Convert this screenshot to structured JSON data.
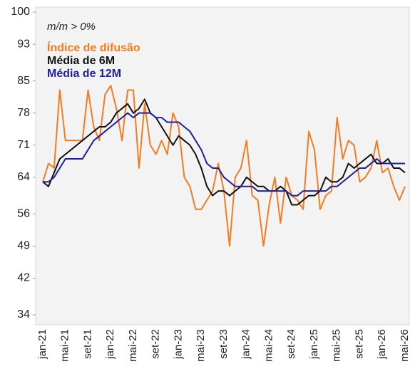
{
  "chart_data": {
    "type": "line",
    "annotation": "m/m > 0%",
    "categories": [
      "jan-21",
      null,
      null,
      null,
      "mai-21",
      null,
      null,
      null,
      "set-21",
      null,
      null,
      null,
      "jan-22",
      null,
      null,
      null,
      "mai-22",
      null,
      null,
      null,
      "set-22",
      null,
      null,
      null,
      "jan-23",
      null,
      null,
      null,
      "mai-23",
      null,
      null,
      null,
      "set-23",
      null,
      null,
      null,
      "jan-24",
      null,
      null,
      null,
      "mai-24",
      null,
      null,
      null,
      "set-24",
      null,
      null,
      null,
      "jan-25",
      null,
      null,
      null,
      "mai-25",
      null,
      null,
      null,
      "set-25",
      null,
      null,
      null,
      "jan-26",
      null,
      null,
      null,
      "mai-26"
    ],
    "series": [
      {
        "name": "Índice de difusão",
        "color": "#f47b20",
        "values": [
          63,
          67,
          66,
          83,
          72,
          72,
          72,
          72,
          83,
          75,
          72,
          82,
          84,
          79,
          72,
          83,
          83,
          66,
          80,
          71,
          69,
          72,
          69,
          78,
          75,
          64,
          62,
          57,
          57,
          59,
          61,
          67,
          61,
          49,
          64,
          66,
          72,
          60,
          59,
          49,
          58,
          64,
          54,
          64,
          60,
          59,
          57,
          74,
          70,
          57,
          60,
          61,
          77,
          68,
          72,
          71,
          63,
          64,
          66,
          72,
          65,
          66,
          62,
          59,
          62
        ]
      },
      {
        "name": "Média de 6M",
        "color": "#111111",
        "values": [
          63,
          62,
          65,
          68,
          69,
          70,
          71,
          72,
          73,
          74,
          75,
          75,
          76,
          78,
          79,
          80,
          78,
          79,
          81,
          78,
          77,
          75,
          73,
          71,
          73,
          72,
          71,
          69,
          66,
          62,
          60,
          61,
          61,
          60,
          61,
          62,
          64,
          63,
          62,
          62,
          61,
          61,
          62,
          61,
          58,
          58,
          59,
          60,
          60,
          61,
          64,
          63,
          63,
          64,
          67,
          66,
          67,
          68,
          69,
          67,
          67,
          68,
          66,
          66,
          65
        ]
      },
      {
        "name": "Média de 12M",
        "color": "#1f1fa3",
        "values": [
          63,
          63,
          64,
          66,
          68,
          68,
          68,
          68,
          70,
          72,
          73,
          74,
          75,
          76,
          77,
          78,
          77,
          78,
          78,
          78,
          77,
          77,
          76,
          76,
          76,
          75,
          74,
          72,
          70,
          67,
          66,
          66,
          64,
          63,
          62,
          62,
          62,
          62,
          61,
          61,
          61,
          61,
          61,
          61,
          60,
          60,
          61,
          61,
          61,
          61,
          61,
          62,
          62,
          63,
          64,
          65,
          66,
          66,
          67,
          68,
          67,
          67,
          67,
          67,
          67
        ]
      }
    ],
    "ylim": [
      34,
      100
    ],
    "yticks": [
      34,
      42,
      49,
      56,
      64,
      71,
      78,
      85,
      93,
      100
    ],
    "grid": false
  }
}
